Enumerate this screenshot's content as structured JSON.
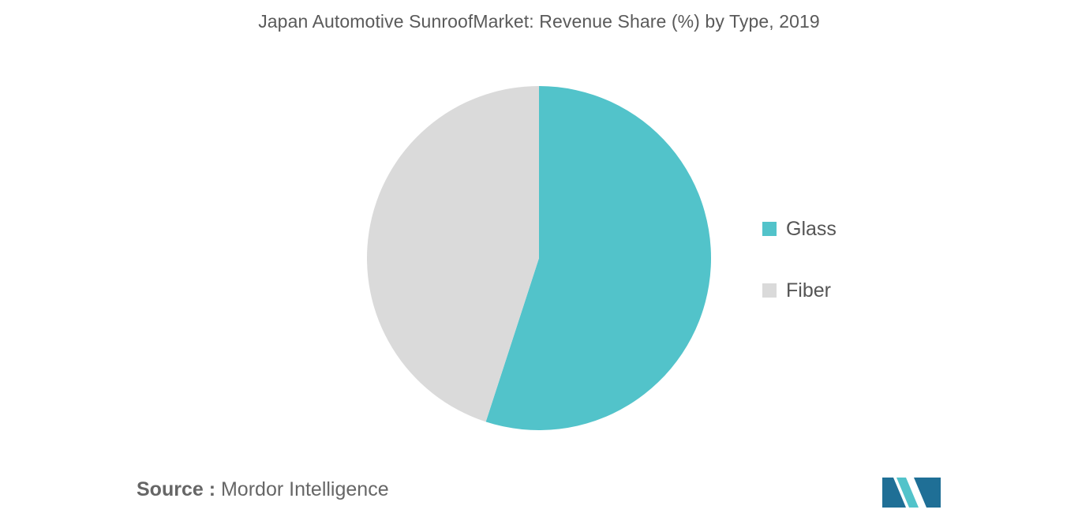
{
  "chart_data": {
    "type": "pie",
    "title": "Japan Automotive SunroofMarket: Revenue Share (%) by Type, 2019",
    "slices": [
      {
        "label": "Glass",
        "value": 55,
        "color": "#52c3ca"
      },
      {
        "label": "Fiber",
        "value": 45,
        "color": "#dadada"
      }
    ],
    "legend_position": "right"
  },
  "source": {
    "label": "Source :",
    "text": "Mordor Intelligence"
  },
  "colors": {
    "logo_dark": "#1f6f96",
    "logo_light": "#52c3ca"
  }
}
